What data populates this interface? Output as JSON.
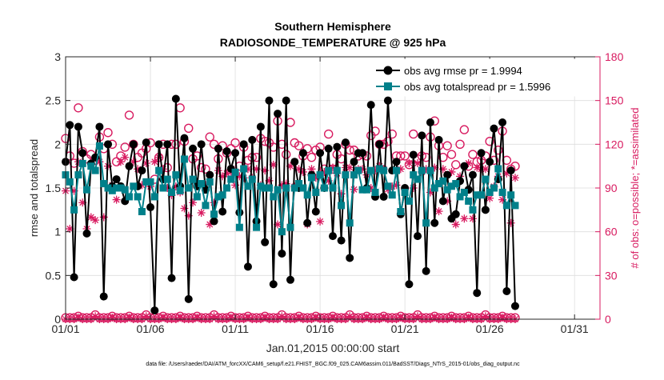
{
  "figure": {
    "title_line1": "Southern Hemisphere",
    "title_line2": "RADIOSONDE_TEMPERATURE @ 925 hPa",
    "xlabel": "Jan.01,2015 00:00:00 start",
    "ylabel_left": "rmse and totalspread",
    "ylabel_right": "# of obs: o=possible; *=assimilated",
    "footer": "data file: /Users/raeder/DAI/ATM_forcXX/CAM6_setup/f.e21.FHIST_BGC.f09_025.CAM6assim.011/BadSST/Diags_NTrS_2015-01/obs_diag_output.nc",
    "legend": {
      "entry1": "obs avg rmse pr = 1.9994",
      "entry2": "obs avg totalspread pr = 1.5996"
    },
    "colors": {
      "rmse": "#000000",
      "spread": "#00808a",
      "obs": "#d81b60",
      "axis": "#262626",
      "grid": "#dedede"
    }
  },
  "chart_data": {
    "type": "line",
    "x_start_day": 1,
    "x_step_days": 0.25,
    "xlim": [
      1,
      32.5
    ],
    "x_ticks": [
      {
        "day": 1,
        "label": "01/01"
      },
      {
        "day": 6,
        "label": "01/06"
      },
      {
        "day": 11,
        "label": "01/11"
      },
      {
        "day": 16,
        "label": "01/16"
      },
      {
        "day": 21,
        "label": "01/21"
      },
      {
        "day": 26,
        "label": "01/26"
      },
      {
        "day": 31,
        "label": "01/31"
      }
    ],
    "ylim_left": [
      0,
      3
    ],
    "y_ticks_left": [
      "0",
      "0.5",
      "1",
      "1.5",
      "2",
      "2.5",
      "3"
    ],
    "ylim_right": [
      0,
      180
    ],
    "y_ticks_right": [
      "0",
      "30",
      "60",
      "90",
      "120",
      "150",
      "180"
    ],
    "grid": true,
    "legend_position": "top-right",
    "series": [
      {
        "name": "obs avg rmse pr = 1.9994",
        "axis": "left",
        "marker": "circle",
        "values": [
          1.8,
          2.22,
          0.48,
          2.2,
          1.9,
          0.98,
          1.78,
          1.85,
          2.2,
          0.26,
          2.0,
          1.52,
          1.6,
          1.52,
          1.35,
          1.75,
          2.0,
          1.52,
          1.7,
          2.02,
          1.28,
          0.1,
          2.0,
          1.6,
          2.0,
          0.47,
          2.52,
          1.52,
          2.07,
          0.23,
          1.95,
          1.52,
          2.0,
          1.48,
          1.65,
          1.12,
          1.95,
          1.23,
          1.92,
          1.72,
          1.9,
          1.22,
          2.0,
          0.6,
          2.05,
          1.12,
          2.2,
          0.88,
          2.5,
          0.4,
          2.35,
          0.75,
          2.5,
          0.45,
          1.8,
          1.5,
          1.9,
          1.1,
          1.65,
          1.23,
          1.9,
          1.5,
          1.95,
          0.95,
          1.97,
          0.9,
          2.02,
          0.7,
          1.8,
          1.9,
          1.9,
          1.5,
          2.45,
          1.4,
          2.0,
          1.4,
          2.5,
          1.7,
          1.8,
          1.2,
          1.5,
          0.4,
          1.88,
          0.95,
          2.1,
          0.55,
          2.25,
          1.1,
          2.05,
          1.35,
          1.65,
          1.15,
          1.2,
          1.58,
          1.75,
          1.48,
          1.65,
          0.3,
          1.9,
          1.25,
          1.8,
          2.18,
          1.6,
          2.25,
          0.32,
          1.7,
          0.15
        ]
      },
      {
        "name": "obs avg totalspread pr = 1.5996",
        "axis": "left",
        "marker": "square",
        "values": [
          1.65,
          1.57,
          1.25,
          1.65,
          1.78,
          1.48,
          1.75,
          1.7,
          1.98,
          1.55,
          1.5,
          1.47,
          1.5,
          1.5,
          1.48,
          1.4,
          1.52,
          1.4,
          1.23,
          1.57,
          1.57,
          1.4,
          1.7,
          1.5,
          1.6,
          1.45,
          1.65,
          1.47,
          1.83,
          1.5,
          1.6,
          1.4,
          1.55,
          1.3,
          1.57,
          1.2,
          1.4,
          1.42,
          1.5,
          1.6,
          1.68,
          1.05,
          1.72,
          1.52,
          1.6,
          1.05,
          1.52,
          1.5,
          1.5,
          1.4,
          1.48,
          1.0,
          1.5,
          1.05,
          1.5,
          1.55,
          1.5,
          1.42,
          1.62,
          1.45,
          1.65,
          1.5,
          1.7,
          1.5,
          1.7,
          1.3,
          1.65,
          1.1,
          1.65,
          1.7,
          1.48,
          1.48,
          1.7,
          1.45,
          1.72,
          1.7,
          1.52,
          1.42,
          1.7,
          1.23,
          1.45,
          1.35,
          1.65,
          1.6,
          1.7,
          1.1,
          1.7,
          1.5,
          1.55,
          1.58,
          1.48,
          1.52,
          1.55,
          1.4,
          1.45,
          1.35,
          1.25,
          1.42,
          1.42,
          1.6,
          1.45,
          1.5,
          1.72,
          1.45,
          1.3,
          1.42,
          1.3
        ]
      },
      {
        "name": "possible",
        "axis": "right",
        "marker": "circle-open",
        "values": [
          124,
          112,
          107,
          145,
          115,
          110,
          113,
          109,
          125,
          117,
          128,
          120,
          108,
          112,
          118,
          140,
          120,
          111,
          114,
          117,
          121,
          96,
          111,
          120,
          104,
          120,
          120,
          145,
          122,
          131,
          110,
          112,
          104,
          103,
          125,
          120,
          110,
          119,
          114,
          117,
          121,
          105,
          118,
          109,
          111,
          111,
          124,
          122,
          121,
          118,
          136,
          120,
          113,
          135,
          121,
          119,
          112,
          117,
          111,
          116,
          118,
          103,
          127,
          103,
          113,
          110,
          120,
          116,
          116,
          112,
          113,
          112,
          126,
          129,
          120,
          120,
          122,
          127,
          112,
          112,
          112,
          106,
          127,
          110,
          112,
          111,
          125,
          136,
          119,
          111,
          119,
          113,
          106,
          120,
          130,
          105,
          113,
          108,
          109,
          112,
          122,
          109,
          116,
          129,
          109,
          103,
          105
        ]
      },
      {
        "name": "assimilated",
        "axis": "right",
        "marker": "asterisk",
        "values": [
          88,
          62,
          88,
          108,
          80,
          62,
          70,
          68,
          108,
          70,
          105,
          92,
          82,
          108,
          111,
          105,
          108,
          103,
          92,
          107,
          91,
          108,
          111,
          103,
          90,
          85,
          91,
          87,
          76,
          71,
          80,
          92,
          73,
          92,
          65,
          80,
          102,
          98,
          100,
          101,
          92,
          98,
          97,
          103,
          97,
          103,
          92,
          102,
          95,
          106,
          65,
          92,
          93,
          105,
          91,
          103,
          101,
          65,
          103,
          97,
          67,
          101,
          95,
          104,
          100,
          86,
          104,
          104,
          89,
          103,
          103,
          99,
          90,
          102,
          105,
          103,
          89,
          91,
          92,
          103,
          89,
          107,
          90,
          107,
          101,
          103,
          87,
          104,
          74,
          103,
          81,
          101,
          65,
          98,
          69,
          107,
          69,
          104,
          103,
          103,
          83,
          91,
          98,
          82,
          100,
          66,
          97
        ]
      },
      {
        "name": "",
        "axis": "right",
        "marker": "circle-open",
        "values": [
          1,
          1,
          1,
          2,
          1,
          1,
          1,
          3,
          1,
          1,
          1,
          2,
          1,
          1,
          1,
          2,
          1,
          1,
          1,
          3,
          1,
          1,
          1,
          2,
          1,
          1,
          1,
          2,
          1,
          1,
          1,
          2,
          1,
          1,
          1,
          3,
          1,
          1,
          1,
          2,
          1,
          1,
          1,
          2,
          1,
          1,
          1,
          2,
          1,
          1,
          1,
          3,
          1,
          1,
          1,
          2,
          1,
          1,
          1,
          2,
          1,
          1,
          1,
          2,
          1,
          1,
          1,
          3,
          1,
          1,
          1,
          2,
          1,
          1,
          1,
          2,
          1,
          1,
          1,
          2,
          1,
          1,
          1,
          3,
          1,
          1,
          1,
          2,
          1,
          1,
          1,
          2,
          1,
          1,
          1,
          2,
          1,
          1,
          1,
          3,
          1,
          1,
          1,
          2,
          1,
          1,
          1
        ]
      },
      {
        "name": "",
        "axis": "right",
        "marker": "asterisk",
        "values": [
          0,
          0,
          0,
          1,
          0,
          0,
          0,
          2,
          0,
          0,
          0,
          1,
          0,
          0,
          0,
          1,
          0,
          0,
          0,
          2,
          0,
          0,
          0,
          1,
          0,
          0,
          0,
          1,
          0,
          0,
          0,
          1,
          0,
          0,
          0,
          2,
          0,
          0,
          0,
          1,
          0,
          0,
          0,
          1,
          0,
          0,
          0,
          1,
          0,
          0,
          0,
          2,
          0,
          0,
          0,
          1,
          0,
          0,
          0,
          1,
          0,
          0,
          0,
          1,
          0,
          0,
          0,
          2,
          0,
          0,
          0,
          1,
          0,
          0,
          0,
          1,
          0,
          0,
          0,
          1,
          0,
          0,
          0,
          2,
          0,
          0,
          0,
          1,
          0,
          0,
          0,
          1,
          0,
          0,
          0,
          1,
          0,
          0,
          0,
          2,
          0,
          0,
          0,
          1,
          0,
          0,
          0
        ]
      }
    ]
  }
}
